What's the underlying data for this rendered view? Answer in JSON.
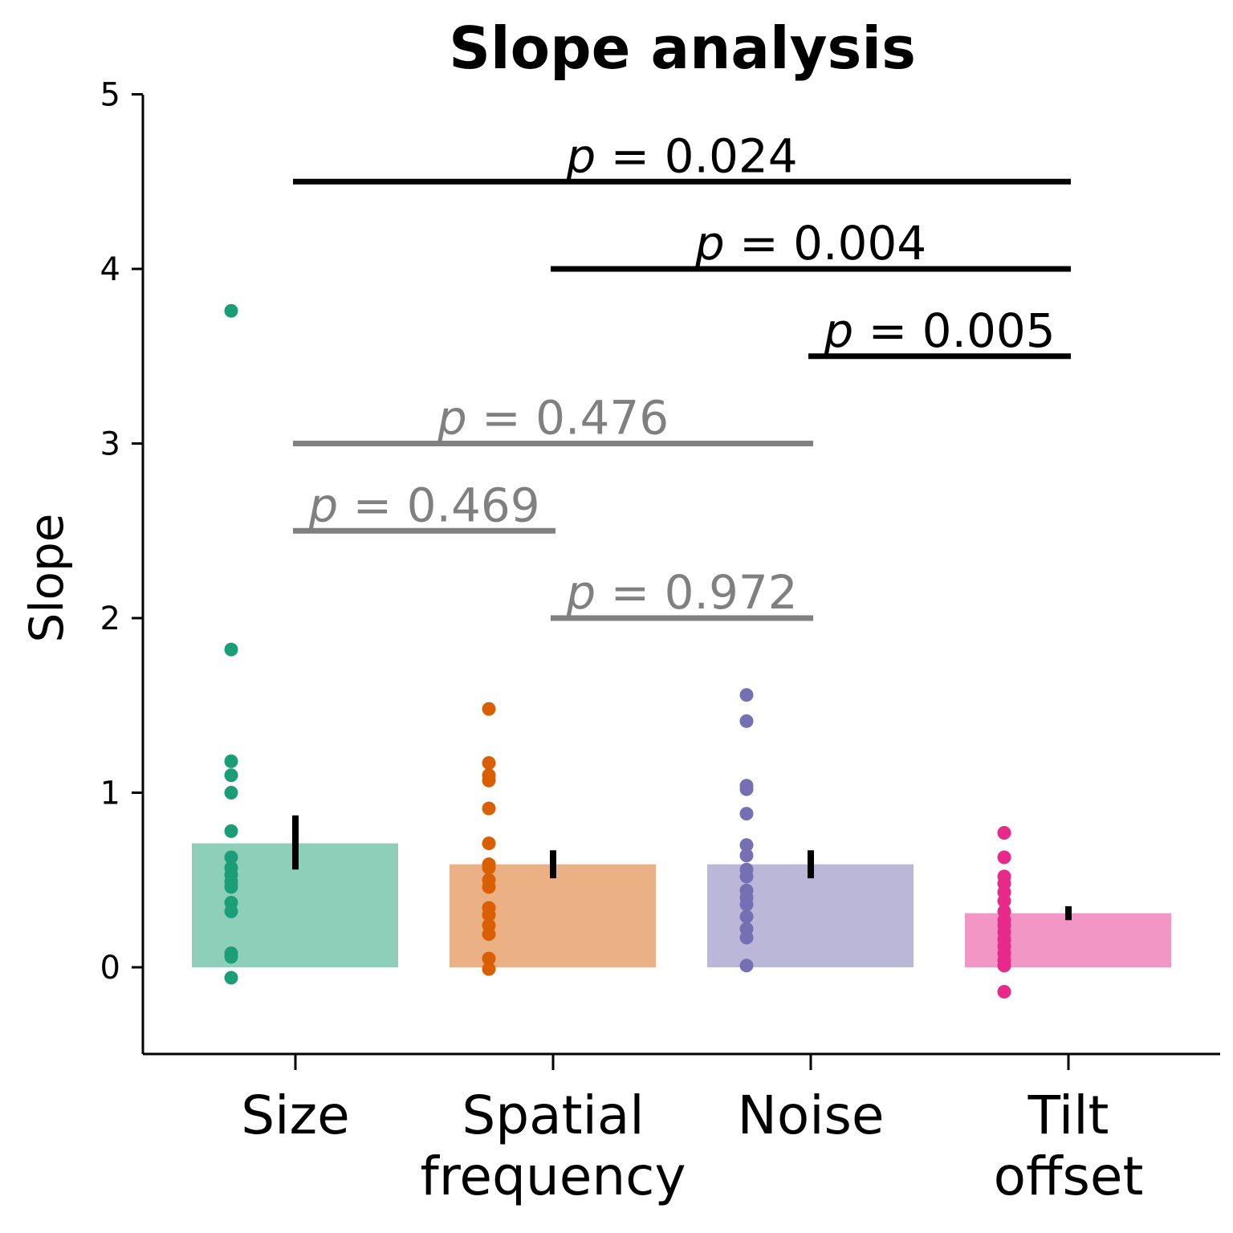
{
  "chart_data": {
    "type": "bar",
    "title": "Slope analysis",
    "ylabel": "Slope",
    "xlabel": "",
    "ylim": [
      -0.5,
      5
    ],
    "yticks": [
      0,
      1,
      2,
      3,
      4,
      5
    ],
    "grid": false,
    "categories": [
      {
        "lines": [
          "Size"
        ],
        "value": 0.71,
        "err": [
          0.56,
          0.87
        ],
        "bar_color": "#8ecfb9",
        "point_color": "#1b9e77",
        "points": [
          3.76,
          1.82,
          1.18,
          1.1,
          1.0,
          0.78,
          0.63,
          0.57,
          0.53,
          0.49,
          0.46,
          0.37,
          0.32,
          0.08,
          0.06,
          -0.06
        ]
      },
      {
        "lines": [
          "Spatial",
          "frequency"
        ],
        "value": 0.59,
        "err": [
          0.51,
          0.67
        ],
        "bar_color": "#ebb083",
        "point_color": "#d95f02",
        "points": [
          1.48,
          1.17,
          1.1,
          1.07,
          0.91,
          0.71,
          0.59,
          0.57,
          0.5,
          0.46,
          0.34,
          0.3,
          0.24,
          0.19,
          0.05,
          -0.01
        ]
      },
      {
        "lines": [
          "Noise"
        ],
        "value": 0.59,
        "err": [
          0.51,
          0.67
        ],
        "bar_color": "#bab7d8",
        "point_color": "#7570b3",
        "points": [
          1.56,
          1.41,
          1.04,
          1.02,
          0.88,
          0.7,
          0.64,
          0.56,
          0.52,
          0.44,
          0.4,
          0.36,
          0.29,
          0.22,
          0.17,
          0.01
        ]
      },
      {
        "lines": [
          "Tilt",
          "offset"
        ],
        "value": 0.31,
        "err": [
          0.27,
          0.35
        ],
        "bar_color": "#f296c5",
        "point_color": "#e7298a",
        "points": [
          0.77,
          0.63,
          0.52,
          0.48,
          0.43,
          0.38,
          0.32,
          0.27,
          0.24,
          0.2,
          0.16,
          0.12,
          0.08,
          0.04,
          0.01,
          -0.14
        ]
      }
    ],
    "annotations": [
      {
        "text": "p = 0.024",
        "from": 0,
        "to": 3,
        "y": 4.5,
        "color": "#000000"
      },
      {
        "text": "p = 0.004",
        "from": 1,
        "to": 3,
        "y": 4.0,
        "color": "#000000"
      },
      {
        "text": "p = 0.005",
        "from": 2,
        "to": 3,
        "y": 3.5,
        "color": "#000000"
      },
      {
        "text": "p = 0.476",
        "from": 0,
        "to": 2,
        "y": 3.0,
        "color": "#808080"
      },
      {
        "text": "p = 0.469",
        "from": 0,
        "to": 1,
        "y": 2.5,
        "color": "#808080"
      },
      {
        "text": "p = 0.972",
        "from": 1,
        "to": 2,
        "y": 2.0,
        "color": "#808080"
      }
    ]
  }
}
